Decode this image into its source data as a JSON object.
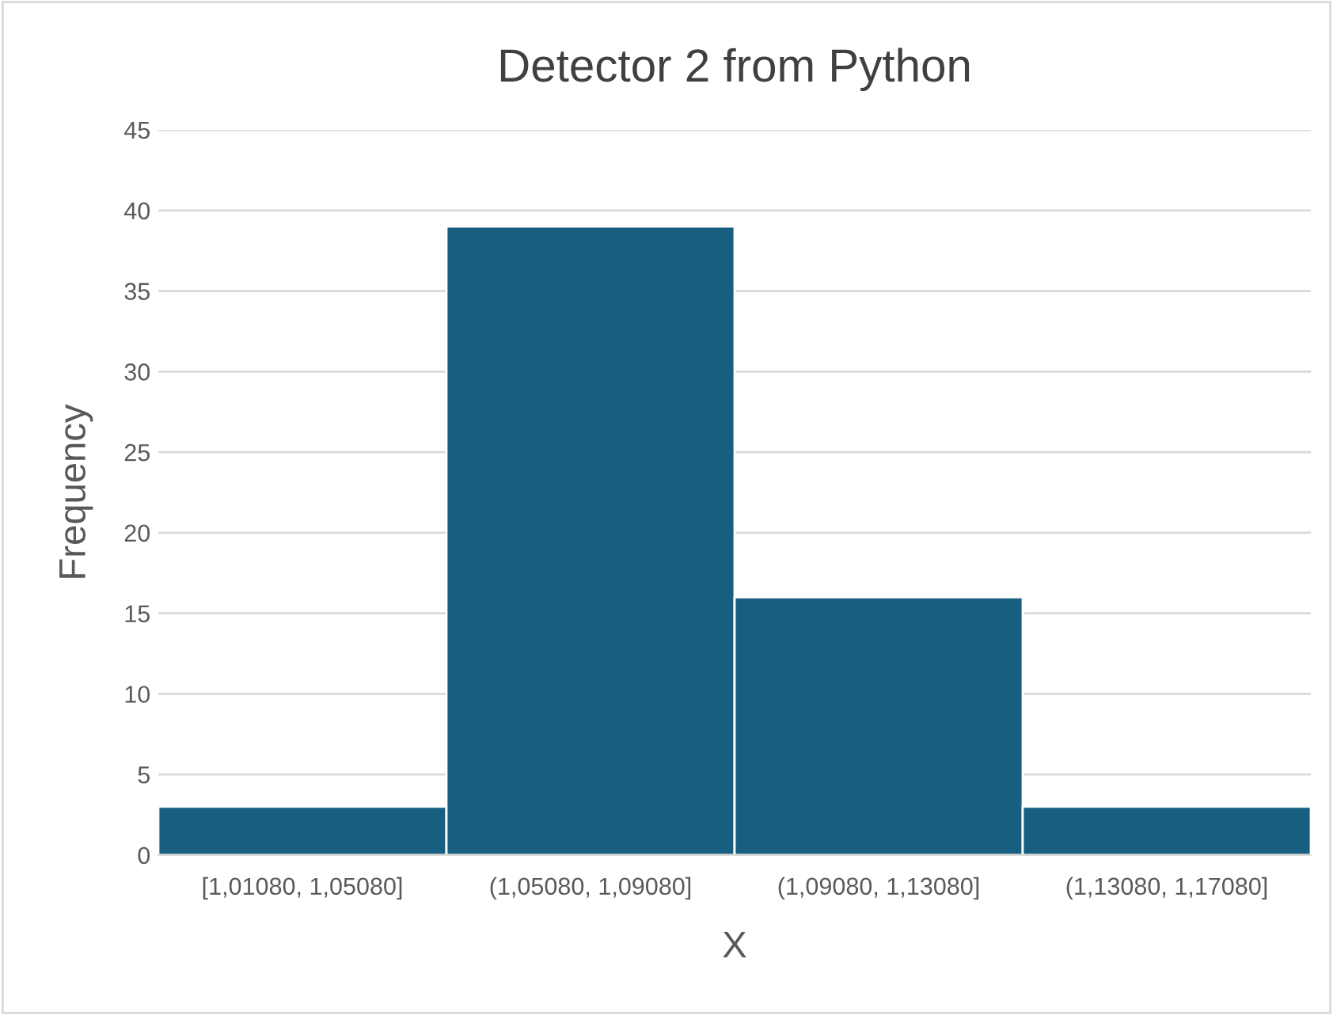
{
  "chart_data": {
    "type": "bar",
    "title": "Detector 2 from Python",
    "xlabel": "X",
    "ylabel": "Frequency",
    "categories": [
      "[1,01080, 1,05080]",
      "(1,05080, 1,09080]",
      "(1,09080, 1,13080]",
      "(1,13080, 1,17080]"
    ],
    "values": [
      3,
      39,
      16,
      3
    ],
    "color": "#175e81",
    "ylim": [
      0,
      45
    ],
    "yticks": [
      0,
      5,
      10,
      15,
      20,
      25,
      30,
      35,
      40,
      45
    ],
    "grid": "y",
    "legend": false
  }
}
